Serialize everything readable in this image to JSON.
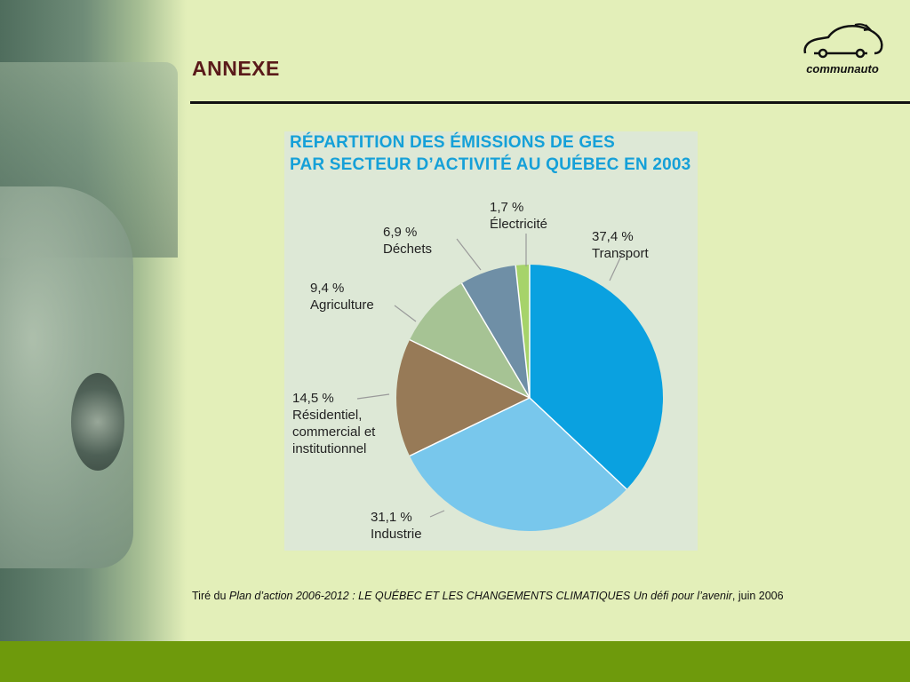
{
  "slide": {
    "title": "ANNEXE",
    "logo_text": "communauto",
    "source": {
      "prefix": "Tiré du ",
      "italic": "Plan d’action 2006-2012 : LE QUÉBEC ET LES CHANGEMENTS CLIMATIQUES Un défi pour l’avenir",
      "suffix": ", juin 2006"
    }
  },
  "chart_data": {
    "type": "pie",
    "title_lines": [
      "RÉPARTITION DES ÉMISSIONS DE GES",
      "PAR SECTEUR D’ACTIVITÉ AU QUÉBEC EN 2003"
    ],
    "slices": [
      {
        "key": "transport",
        "value": 37.4,
        "value_label": "37,4 %",
        "label_lines": [
          "Transport"
        ],
        "color": "#0aa1e0"
      },
      {
        "key": "industrie",
        "value": 31.1,
        "value_label": "31,1 %",
        "label_lines": [
          "Industrie"
        ],
        "color": "#78c7ec"
      },
      {
        "key": "residentiel",
        "value": 14.5,
        "value_label": "14,5 %",
        "label_lines": [
          "Résidentiel,",
          "commercial et",
          "institutionnel"
        ],
        "color": "#977a57"
      },
      {
        "key": "agriculture",
        "value": 9.4,
        "value_label": "9,4 %",
        "label_lines": [
          "Agriculture"
        ],
        "color": "#a6c394"
      },
      {
        "key": "dechets",
        "value": 6.9,
        "value_label": "6,9 %",
        "label_lines": [
          "Déchets"
        ],
        "color": "#6f8fa6"
      },
      {
        "key": "electricite",
        "value": 1.7,
        "value_label": "1,7 %",
        "label_lines": [
          "Électricité"
        ],
        "color": "#a6d36a"
      }
    ]
  }
}
